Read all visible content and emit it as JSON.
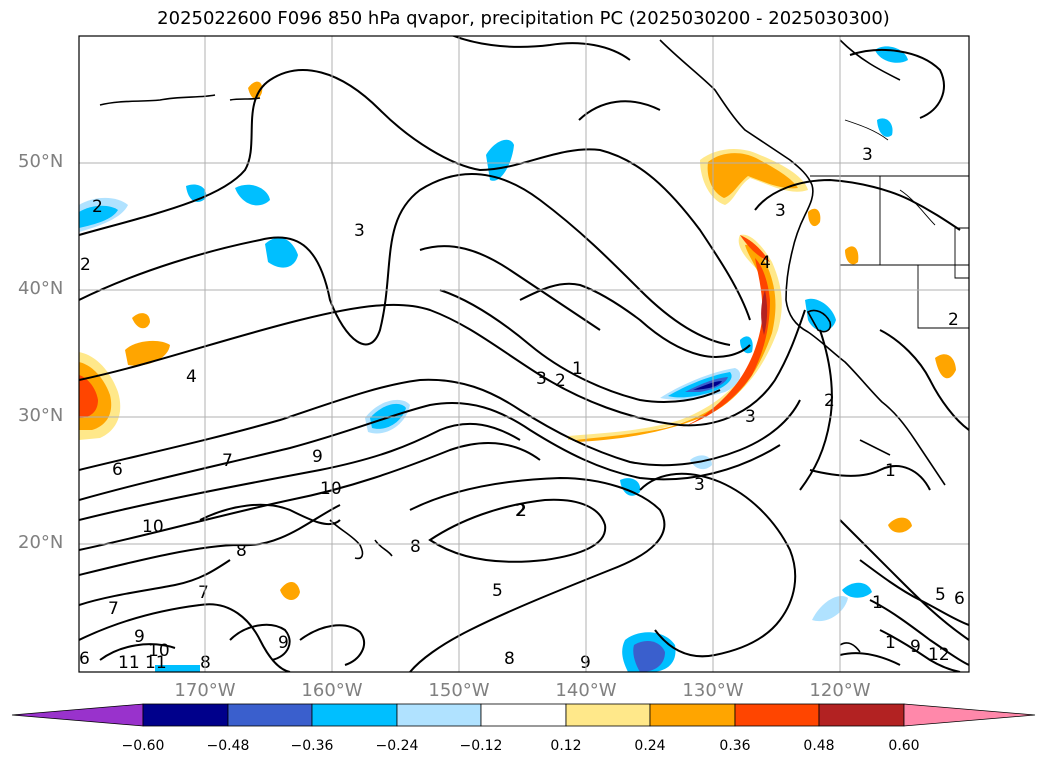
{
  "title": "2025022600 F096 850 hPa qvapor, precipitation PC (2025030200 - 2025030300)",
  "lat_labels": [
    "50°N",
    "40°N",
    "30°N",
    "20°N"
  ],
  "lon_labels": [
    "170°W",
    "160°W",
    "150°W",
    "140°W",
    "130°W",
    "120°W"
  ],
  "colorbar": {
    "ticks": [
      "−0.60",
      "−0.48",
      "−0.36",
      "−0.24",
      "−0.12",
      "0.12",
      "0.24",
      "0.36",
      "0.48",
      "0.60"
    ],
    "colors": [
      "#9932cc",
      "#00008b",
      "#3a5fcd",
      "#00bfff",
      "#b0e2ff",
      "#ffffff",
      "#ffe88a",
      "#ffa500",
      "#ff4500",
      "#b22222",
      "#ff88aa"
    ]
  },
  "contour_labels": [
    "2",
    "2",
    "3",
    "4",
    "6",
    "7",
    "9",
    "10",
    "10",
    "8",
    "7",
    "7",
    "9",
    "9",
    "8",
    "8",
    "3",
    "2",
    "1",
    "2",
    "4",
    "3",
    "2",
    "3",
    "3",
    "2",
    "5",
    "8",
    "9",
    "1",
    "1",
    "5",
    "6",
    "9",
    "11",
    "12",
    "1",
    "6",
    "10",
    "11",
    "3",
    "2"
  ]
}
